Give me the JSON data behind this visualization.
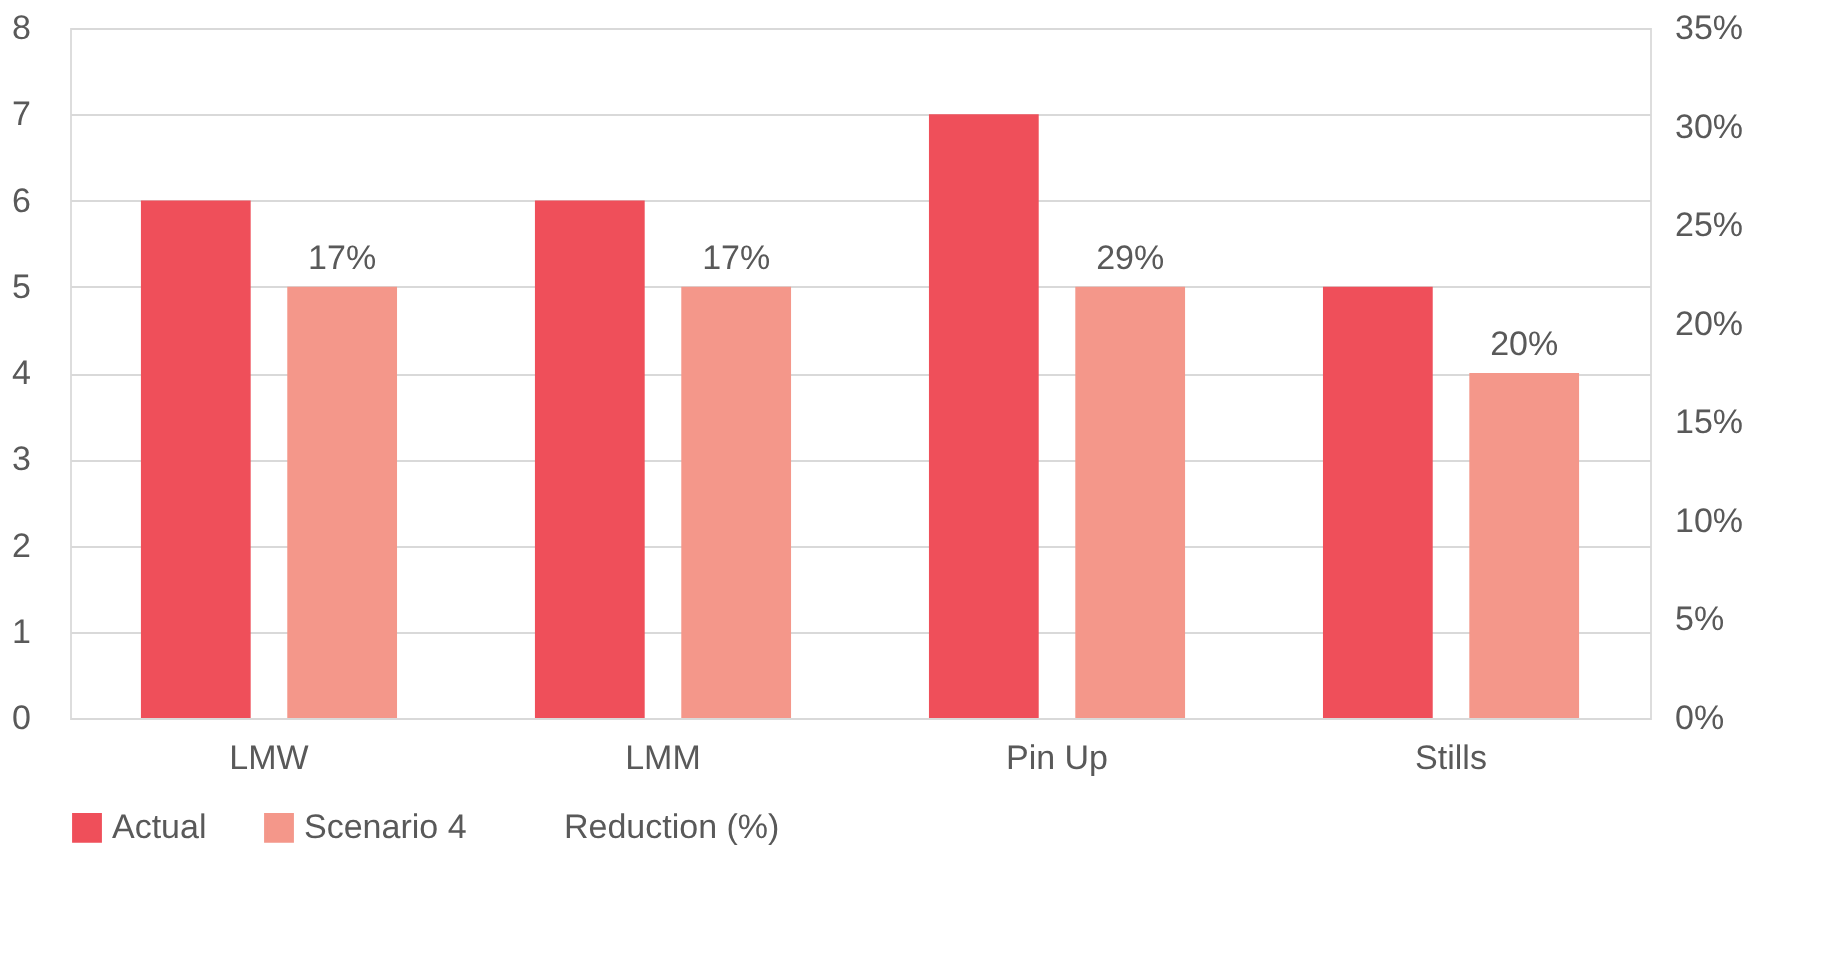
{
  "chart_data": {
    "type": "bar",
    "categories": [
      "LMW",
      "LMM",
      "Pin Up",
      "Stills"
    ],
    "series": [
      {
        "name": "Actual",
        "color": "#ef4f5a",
        "values": [
          6,
          6,
          7,
          5
        ]
      },
      {
        "name": "Scenario 4",
        "color": "#f4978a",
        "values": [
          5,
          5,
          5,
          4
        ]
      },
      {
        "name": "Reduction (%)",
        "axis": "y2",
        "color": null,
        "values": [
          null,
          null,
          null,
          null
        ]
      }
    ],
    "annotations": [
      "17%",
      "17%",
      "29%",
      "20%"
    ],
    "ylim": [
      0,
      8
    ],
    "yticks": [
      0,
      1,
      2,
      3,
      4,
      5,
      6,
      7,
      8
    ],
    "y2lim": [
      0,
      35
    ],
    "y2ticks": [
      {
        "value": 0,
        "label": "0%"
      },
      {
        "value": 5,
        "label": "5%"
      },
      {
        "value": 10,
        "label": "10%"
      },
      {
        "value": 15,
        "label": "15%"
      },
      {
        "value": 20,
        "label": "20%"
      },
      {
        "value": 25,
        "label": "25%"
      },
      {
        "value": 30,
        "label": "30%"
      },
      {
        "value": 35,
        "label": "35%"
      }
    ],
    "grid": "y",
    "legend": "bottom"
  }
}
